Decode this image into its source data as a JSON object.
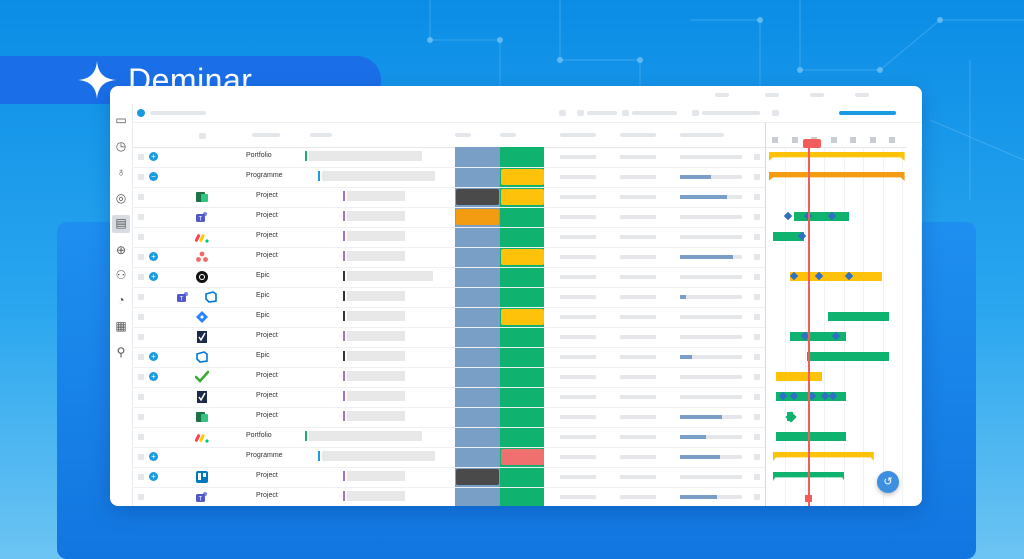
{
  "brand": {
    "name": "Deminar"
  },
  "sidebar_icons": [
    "briefcase-icon",
    "clock-icon",
    "bulb-icon",
    "target-icon",
    "timeline-icon",
    "globe-icon",
    "people-icon",
    "chart-icon",
    "building-icon",
    "user-icon"
  ],
  "colors": {
    "accent": "#1a9ae0",
    "steel_column": "#7a9fc7",
    "green_column": "#0fb36f",
    "yellow": "#fec20b",
    "orange": "#f39c12",
    "gantt_green": "#0fb36f",
    "today_red": "#f25c5c",
    "dark_block": "#4a4a4a",
    "red_block": "#f07070"
  },
  "rows": [
    {
      "type": "Portfolio",
      "expander": "+",
      "icon": "",
      "level_color": "#0fb36f",
      "progress": null
    },
    {
      "type": "Programme",
      "expander": "−",
      "icon": "",
      "level_color": "#1a9ae0",
      "progress": 0.5
    },
    {
      "type": "Project",
      "expander": "",
      "icon": "project-icon",
      "level_color": "#a56fc4",
      "progress": 0.75
    },
    {
      "type": "Project",
      "expander": "",
      "icon": "teams-icon",
      "level_color": "#a56fc4",
      "progress": null
    },
    {
      "type": "Project",
      "expander": "",
      "icon": "monday-icon",
      "level_color": "#a56fc4",
      "progress": null
    },
    {
      "type": "Project",
      "expander": "+",
      "icon": "asana-icon",
      "level_color": "#a56fc4",
      "progress": 0.85
    },
    {
      "type": "Epic",
      "expander": "+",
      "icon": "github-icon",
      "level_color": "#333333",
      "progress": null
    },
    {
      "type": "Epic",
      "expander": "",
      "icon": "azure-devops-icon",
      "level_color": "#333333",
      "progress": 0.1
    },
    {
      "type": "Epic",
      "expander": "",
      "icon": "jira-icon",
      "level_color": "#333333",
      "progress": null
    },
    {
      "type": "Project",
      "expander": "",
      "icon": "planner-icon",
      "level_color": "#a56fc4",
      "progress": null
    },
    {
      "type": "Epic",
      "expander": "+",
      "icon": "azure-devops-icon",
      "level_color": "#333333",
      "progress": 0.2
    },
    {
      "type": "Project",
      "expander": "+",
      "icon": "checkmark-icon",
      "level_color": "#a56fc4",
      "progress": null
    },
    {
      "type": "Project",
      "expander": "",
      "icon": "planner-icon",
      "level_color": "#a56fc4",
      "progress": null
    },
    {
      "type": "Project",
      "expander": "",
      "icon": "project-icon",
      "level_color": "#a56fc4",
      "progress": 0.68
    },
    {
      "type": "Portfolio",
      "expander": "",
      "icon": "monday-icon",
      "level_color": "#0fb36f",
      "progress": 0.42
    },
    {
      "type": "Programme",
      "expander": "+",
      "icon": "",
      "level_color": "#1a9ae0",
      "progress": 0.65
    },
    {
      "type": "Project",
      "expander": "+",
      "icon": "trello-icon",
      "level_color": "#a56fc4",
      "progress": null
    },
    {
      "type": "Project",
      "expander": "",
      "icon": "teams-icon",
      "level_color": "#a56fc4",
      "progress": 0.6
    }
  ],
  "steel_cells": [
    {
      "row": 2,
      "color": "#4a4a4a"
    },
    {
      "row": 3,
      "color": "#f39c12"
    },
    {
      "row": 16,
      "color": "#4a4a4a"
    }
  ],
  "green_cells": [
    {
      "row": 1,
      "color": "#fec20b"
    },
    {
      "row": 2,
      "color": "#fec20b"
    },
    {
      "row": 5,
      "color": "#fec20b"
    },
    {
      "row": 8,
      "color": "#fec20b"
    },
    {
      "row": 15,
      "color": "#f07070"
    }
  ],
  "gantt": [
    {
      "row": 0,
      "start": 0.02,
      "end": 0.99,
      "color": "#fec20b",
      "style": "bracket"
    },
    {
      "row": 1,
      "start": 0.02,
      "end": 0.99,
      "color": "#f39c12",
      "style": "bracket"
    },
    {
      "row": 3,
      "start": 0.2,
      "end": 0.59,
      "color": "#0fb36f",
      "milestones": [
        0.16,
        0.3,
        0.47
      ]
    },
    {
      "row": 4,
      "start": 0.05,
      "end": 0.27,
      "color": "#0fb36f",
      "milestones": [
        0.26
      ]
    },
    {
      "row": 6,
      "start": 0.17,
      "end": 0.83,
      "color": "#fec20b",
      "milestones": [
        0.2,
        0.38,
        0.59
      ]
    },
    {
      "row": 8,
      "start": 0.44,
      "end": 0.88,
      "color": "#0fb36f"
    },
    {
      "row": 9,
      "start": 0.17,
      "end": 0.57,
      "color": "#0fb36f",
      "milestones": [
        0.28,
        0.5
      ]
    },
    {
      "row": 10,
      "start": 0.29,
      "end": 0.88,
      "color": "#0fb36f"
    },
    {
      "row": 11,
      "start": 0.07,
      "end": 0.4,
      "color": "#fec20b"
    },
    {
      "row": 12,
      "start": 0.07,
      "end": 0.57,
      "color": "#0fb36f",
      "milestones": [
        0.12,
        0.2,
        0.33,
        0.42,
        0.48
      ]
    },
    {
      "row": 13,
      "start": 0.15,
      "end": 0.19,
      "color": "#0fb36f",
      "milestones": [
        0.17
      ]
    },
    {
      "row": 14,
      "start": 0.07,
      "end": 0.57,
      "color": "#0fb36f"
    },
    {
      "row": 15,
      "start": 0.05,
      "end": 0.77,
      "color": "#fec20b",
      "style": "bracket"
    },
    {
      "row": 16,
      "start": 0.05,
      "end": 0.56,
      "color": "#0fb36f",
      "style": "bracket"
    }
  ]
}
